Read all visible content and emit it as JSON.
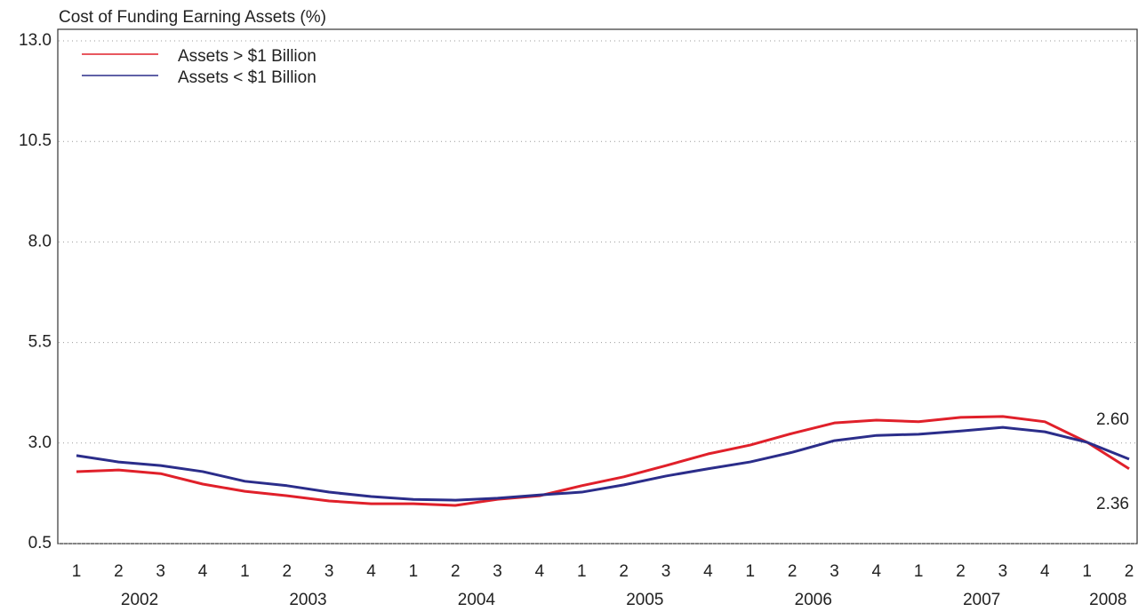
{
  "chart_data": {
    "type": "line",
    "title": "Cost of Funding Earning Assets (%)",
    "categories": [
      "1",
      "2",
      "3",
      "4",
      "1",
      "2",
      "3",
      "4",
      "1",
      "2",
      "3",
      "4",
      "1",
      "2",
      "3",
      "4",
      "1",
      "2",
      "3",
      "4",
      "1",
      "2",
      "3",
      "4",
      "1",
      "2"
    ],
    "years": [
      "2002",
      "2003",
      "2004",
      "2005",
      "2006",
      "2007",
      "2008"
    ],
    "series": [
      {
        "name": "Assets > $1 Billion",
        "color": "#e0202a",
        "values": [
          2.29,
          2.33,
          2.24,
          1.98,
          1.8,
          1.69,
          1.56,
          1.49,
          1.49,
          1.45,
          1.6,
          1.69,
          1.94,
          2.16,
          2.44,
          2.73,
          2.95,
          3.24,
          3.5,
          3.57,
          3.53,
          3.64,
          3.66,
          3.53,
          3.02,
          2.36
        ],
        "value_labels": [
          null,
          null,
          null,
          null,
          null,
          null,
          null,
          null,
          null,
          null,
          null,
          null,
          null,
          null,
          null,
          null,
          null,
          null,
          null,
          null,
          null,
          null,
          null,
          null,
          null,
          "2.36"
        ]
      },
      {
        "name": "Assets < $1 Billion",
        "color": "#2b2d8a",
        "values": [
          2.69,
          2.53,
          2.44,
          2.29,
          2.05,
          1.94,
          1.78,
          1.67,
          1.6,
          1.58,
          1.63,
          1.71,
          1.78,
          1.96,
          2.18,
          2.36,
          2.53,
          2.77,
          3.06,
          3.19,
          3.22,
          3.3,
          3.39,
          3.28,
          3.02,
          2.6
        ],
        "value_labels": [
          null,
          null,
          null,
          null,
          null,
          null,
          null,
          null,
          null,
          null,
          null,
          null,
          null,
          null,
          null,
          null,
          null,
          null,
          null,
          null,
          null,
          null,
          null,
          null,
          null,
          "2.60"
        ]
      }
    ],
    "ylim": [
      0.5,
      13.0
    ],
    "yticks": [
      {
        "value": 0.5,
        "label": "0.5"
      },
      {
        "value": 3.0,
        "label": "3.0"
      },
      {
        "value": 5.5,
        "label": "5.5"
      },
      {
        "value": 8.0,
        "label": "8.0"
      },
      {
        "value": 10.5,
        "label": "10.5"
      },
      {
        "value": 13.0,
        "label": "13.0"
      }
    ],
    "grid": true,
    "legend": "top-left"
  }
}
